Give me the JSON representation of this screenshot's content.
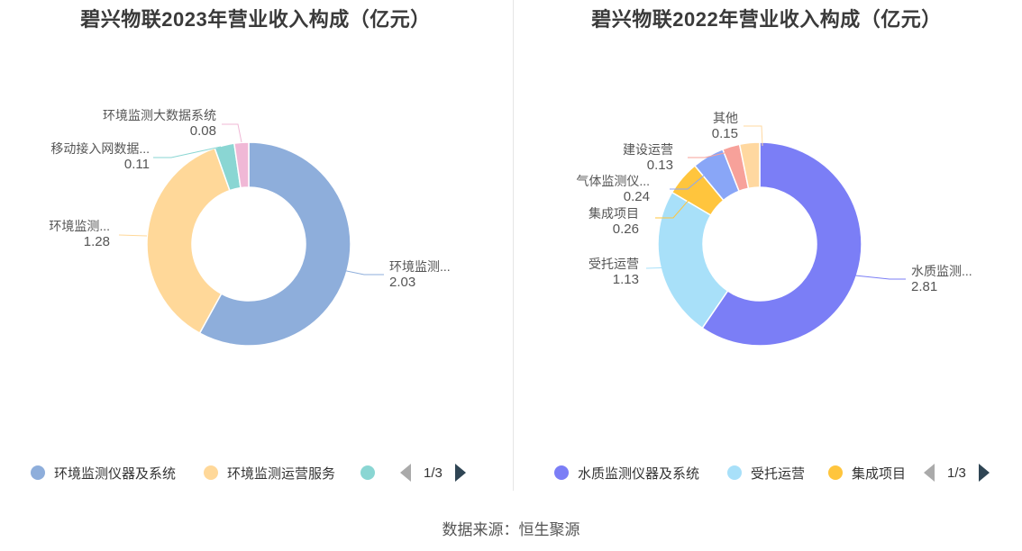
{
  "chart_data": [
    {
      "type": "pie",
      "title": "碧兴物联2023年营业收入构成（亿元）",
      "slices": [
        {
          "name": "环境监测仪器及系统",
          "label": "环境监测...",
          "value": 2.03,
          "value_text": "2.03",
          "color": "#8eaedb"
        },
        {
          "name": "环境监测运营服务",
          "label": "环境监测...",
          "value": 1.28,
          "value_text": "1.28",
          "color": "#ffd899"
        },
        {
          "name": "移动接入网数据...",
          "label": "移动接入网数据...",
          "value": 0.11,
          "value_text": "0.11",
          "color": "#8ad6d3"
        },
        {
          "name": "环境监测大数据系统",
          "label": "环境监测大数据系统",
          "value": 0.08,
          "value_text": "0.08",
          "color": "#f0b8d6"
        }
      ],
      "legend": {
        "placement": "bottom",
        "items": [
          "环境监测仪器及系统",
          "环境监测运营服务",
          ""
        ],
        "colors": [
          "#8eaedb",
          "#ffd899",
          "#8ad6d3"
        ],
        "page": "1/3"
      }
    },
    {
      "type": "pie",
      "title": "碧兴物联2022年营业收入构成（亿元）",
      "slices": [
        {
          "name": "水质监测仪器及系统",
          "label": "水质监测...",
          "value": 2.81,
          "value_text": "2.81",
          "color": "#7b7ef6"
        },
        {
          "name": "受托运营",
          "label": "受托运营",
          "value": 1.13,
          "value_text": "1.13",
          "color": "#a8e0f9"
        },
        {
          "name": "集成项目",
          "label": "集成项目",
          "value": 0.26,
          "value_text": "0.26",
          "color": "#ffc53d"
        },
        {
          "name": "气体监测仪...",
          "label": "气体监测仪...",
          "value": 0.24,
          "value_text": "0.24",
          "color": "#89a6f7"
        },
        {
          "name": "建设运营",
          "label": "建设运营",
          "value": 0.13,
          "value_text": "0.13",
          "color": "#f7a19a"
        },
        {
          "name": "其他",
          "label": "其他",
          "value": 0.15,
          "value_text": "0.15",
          "color": "#ffd8a0"
        }
      ],
      "legend": {
        "placement": "bottom",
        "items": [
          "水质监测仪器及系统",
          "受托运营",
          "集成项目"
        ],
        "colors": [
          "#7b7ef6",
          "#a8e0f9",
          "#ffc53d"
        ],
        "page": "1/3"
      }
    }
  ],
  "source": "数据来源：恒生聚源"
}
